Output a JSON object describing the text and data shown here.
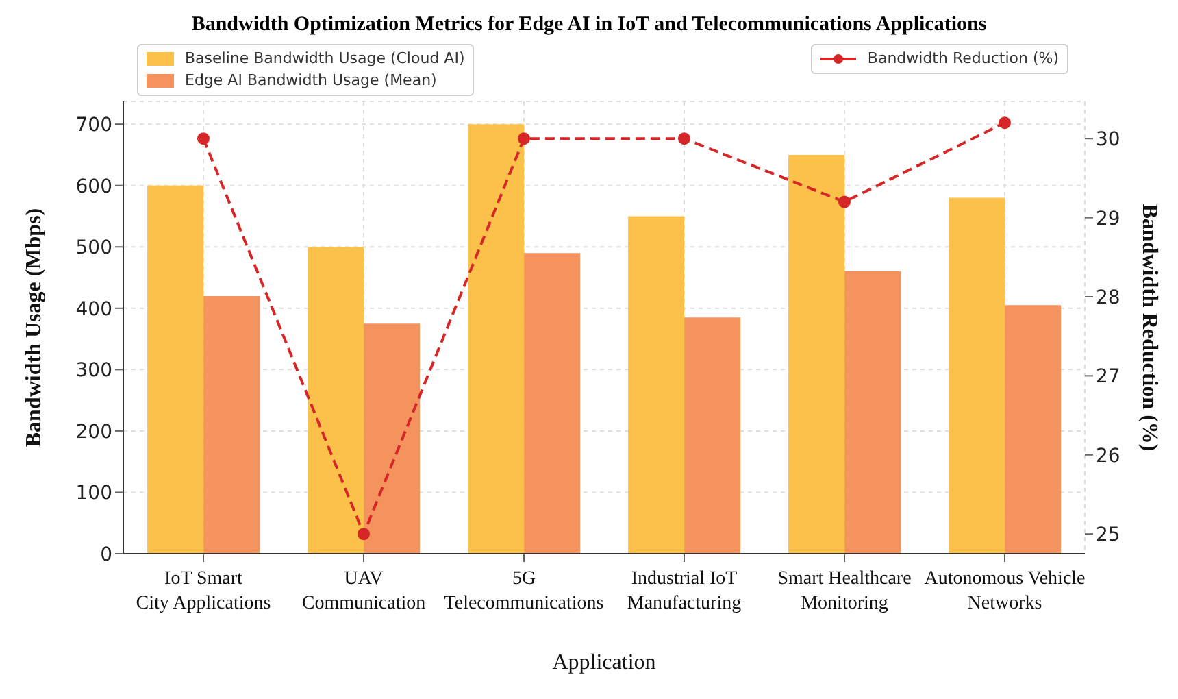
{
  "chart_data": {
    "type": "bar",
    "title": "Bandwidth Optimization Metrics for Edge AI in IoT and Telecommunications Applications",
    "xlabel": "Application",
    "ylabel": "Bandwidth Usage  (Mbps)",
    "y2label": "Bandwidth Reduction (%)",
    "categories": [
      "IoT Smart City Applications",
      "UAV Communication",
      "5G Telecommunications",
      "Industrial IoT Manufacturing",
      "Smart Healthcare Monitoring",
      "Autonomous Vehicle Networks"
    ],
    "series": [
      {
        "name": "Baseline Bandwidth Usage (Cloud AI)",
        "color": "#fbc14a",
        "values": [
          600,
          500,
          700,
          550,
          650,
          580
        ]
      },
      {
        "name": "Edge AI Bandwidth Usage (Mean)",
        "color": "#f4935e",
        "values": [
          420,
          375,
          490,
          385,
          460,
          405
        ]
      },
      {
        "name": "Bandwidth Reduction (%)",
        "type": "line",
        "axis": "y2",
        "color": "#d62728",
        "line_style": "dashed",
        "marker": "circle",
        "values": [
          30,
          25,
          30,
          30,
          29.2,
          30.2
        ]
      }
    ],
    "ylim": [
      0,
      737
    ],
    "yticks": [
      0,
      100,
      200,
      300,
      400,
      500,
      600,
      700
    ],
    "y2lim": [
      24.75,
      30.47
    ],
    "y2ticks": [
      25,
      26,
      27,
      28,
      29,
      30
    ],
    "grid": true,
    "legend": "top"
  }
}
